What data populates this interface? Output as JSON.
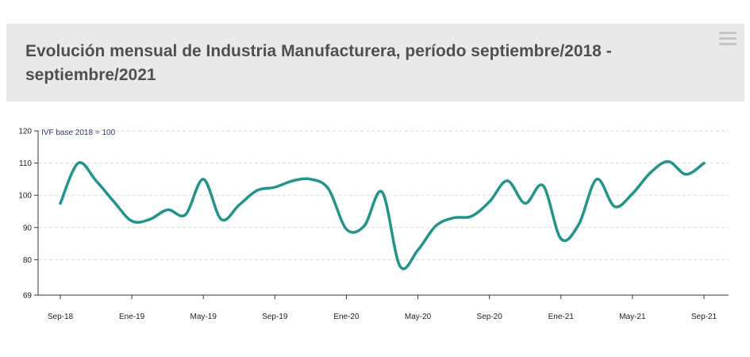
{
  "header": {
    "title": "Evolución mensual de Industria Manufacturera, período septiembre/2018 - septiembre/2021",
    "menu_icon": "hamburger-menu-icon"
  },
  "chart_data": {
    "type": "line",
    "title": "Evolución mensual de Industria Manufacturera, período septiembre/2018 - septiembre/2021",
    "ylabel": "IVF base 2018 = 100",
    "xlabel": "",
    "ylim": [
      69,
      120
    ],
    "yticks": [
      69,
      80,
      90,
      100,
      110,
      120
    ],
    "grid": "horizontal-dashed",
    "line_color": "#23948a",
    "xticks": [
      "Sep-18",
      "Ene-19",
      "May-19",
      "Sep-19",
      "Ene-20",
      "May-20",
      "Sep-20",
      "Ene-21",
      "May-21",
      "Sep-21"
    ],
    "x": [
      "Sep-18",
      "Oct-18",
      "Nov-18",
      "Dic-18",
      "Ene-19",
      "Feb-19",
      "Mar-19",
      "Abr-19",
      "May-19",
      "Jun-19",
      "Jul-19",
      "Ago-19",
      "Sep-19",
      "Oct-19",
      "Nov-19",
      "Dic-19",
      "Ene-20",
      "Feb-20",
      "Mar-20",
      "Abr-20",
      "May-20",
      "Jun-20",
      "Jul-20",
      "Ago-20",
      "Sep-20",
      "Oct-20",
      "Nov-20",
      "Dic-20",
      "Ene-21",
      "Feb-21",
      "Mar-21",
      "Abr-21",
      "May-21",
      "Jun-21",
      "Jul-21",
      "Ago-21",
      "Sep-21"
    ],
    "series": [
      {
        "values": [
          97.5,
          110,
          104.5,
          98,
          92,
          92.5,
          95.5,
          94,
          105,
          92.5,
          97,
          101.5,
          102.5,
          104.5,
          105,
          102,
          89.5,
          90.5,
          101,
          78,
          83,
          90.5,
          93,
          93.5,
          98,
          104.5,
          97.5,
          103,
          86.5,
          91,
          105,
          96.5,
          100.5,
          107,
          110.5,
          106.5,
          110
        ]
      }
    ]
  }
}
